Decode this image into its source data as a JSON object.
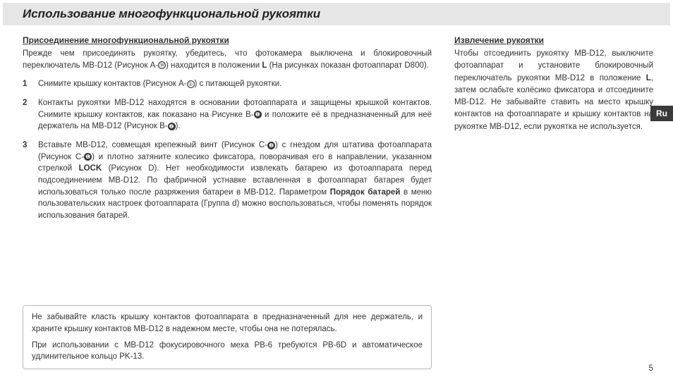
{
  "title": "Использование многофункциональной рукоятки",
  "left": {
    "subhead": "Присоединение многофункциональной рукоятки",
    "intro_a": "Прежде чем присоединять рукоятку, убедитесь, что фотокамера выключена и блокировочный переключатель MB-D12 (Рисунок A-",
    "intro_b": ") находится в положении ",
    "intro_lock": "L",
    "intro_c": " (На рисунках показан фотоаппарат D800).",
    "ref_a14": "⑭",
    "step1": {
      "num": "1",
      "a": "Снимите крышку контактов (Рисунок A-",
      "ref": "①",
      "b": ") с питающей рукоятки."
    },
    "step2": {
      "num": "2",
      "a": "Контакты рукоятки MB-D12 находятся в основании фотоаппарата и защищены крышкой контактов. Снимите крышку контактов, как показано на Рисунке B-",
      "ref1": "❶",
      "b": " и положите её в предназначенный для неё держатель на MB-D12 (Рисунок B-",
      "ref2": "❷",
      "c": ")."
    },
    "step3": {
      "num": "3",
      "a": "Вставьте MB-D12, совмещая крепежный винт (Рисунок C-",
      "ref1": "❷",
      "b": ") с гнездом для штатива фотоаппарата (Рисунок C-",
      "ref2": "❶",
      "c": ") и плотно затяните колесико фиксатора, поворачивая его в направлении, указанном стрелкой ",
      "lock": "LOCK",
      "d": " (Рисунок D). Нет необходимости извлекать батарею из фотоаппарата перед подсоединением MB-D12. По фабричной устнавке вставленная в фотоаппарат батарея будет использоваться только после разряжения батареи в MB-D12. Параметром ",
      "param": "Порядок батарей",
      "e": " в меню пользовательских настроек фотоаппарата (Группа d) можно воспользоваться, чтобы поменять порядок использования батарей."
    }
  },
  "right": {
    "subhead": "Извлечение рукоятки",
    "para_a": "Чтобы отсоединить рукоятку MB-D12, выключите фотоаппарат и установите блокировочный переключатель рукоятки MB-D12 в положение ",
    "lock": "L",
    "para_b": ", затем ослабьте колёсико фиксатора и отсоедините MB-D12. Не забывайте ставить на место крышку контактов на фотоаппарате и крышку контактов на рукоятке MB-D12, если рукоятка не используется."
  },
  "note": {
    "p1": "Не забывайте класть крышку контактов фотоаппарата в предназначенный для нее держатель, и храните крышку контактов MB-D12 в надежном месте, чтобы она не потерялась.",
    "p2": "При использовании с MB-D12 фокусировочного меха PB-6 требуются PB-6D и автоматическое удлинительное кольцо PK-13."
  },
  "lang_tab": "Ru",
  "page_number": "5"
}
